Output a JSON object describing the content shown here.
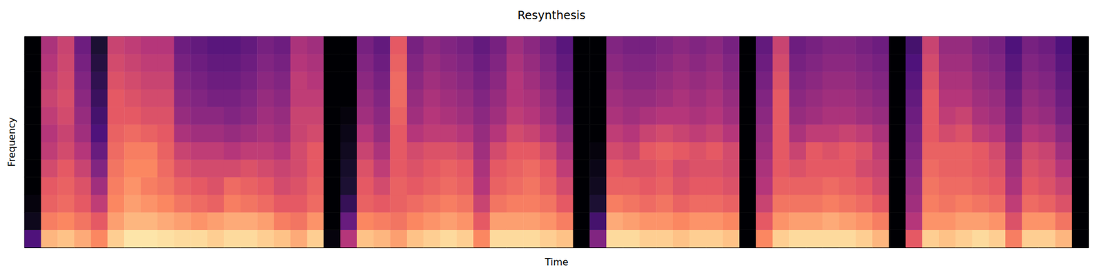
{
  "chart_data": {
    "type": "heatmap",
    "title": "Resynthesis",
    "x_label": "Time",
    "y_label": "Frequency",
    "tick_labels": false,
    "grid": false,
    "zlim": [
      -80,
      0
    ],
    "cells": [
      [
        -60,
        -75,
        -78,
        -80,
        -80,
        -80,
        -80,
        -80,
        -80,
        -80,
        -80,
        -80
      ],
      [
        -12,
        -22,
        -28,
        -30,
        -34,
        -38,
        -40,
        -38,
        -36,
        -38,
        -40,
        -42
      ],
      [
        -10,
        -20,
        -26,
        -28,
        -30,
        -34,
        -36,
        -34,
        -33,
        -34,
        -35,
        -36
      ],
      [
        -14,
        -24,
        -30,
        -32,
        -36,
        -40,
        -44,
        -46,
        -48,
        -50,
        -52,
        -54
      ],
      [
        -20,
        -30,
        -38,
        -44,
        -50,
        -55,
        -60,
        -62,
        -64,
        -66,
        -68,
        -70
      ],
      [
        -8,
        -16,
        -20,
        -22,
        -24,
        -26,
        -28,
        -30,
        -30,
        -32,
        -34,
        -36
      ],
      [
        -4,
        -12,
        -16,
        -18,
        -20,
        -22,
        -26,
        -30,
        -32,
        -34,
        -36,
        -38
      ],
      [
        -4,
        -12,
        -18,
        -22,
        -20,
        -22,
        -28,
        -32,
        -34,
        -36,
        -38,
        -40
      ],
      [
        -5,
        -14,
        -20,
        -24,
        -26,
        -28,
        -30,
        -32,
        -34,
        -36,
        -38,
        -40
      ],
      [
        -6,
        -16,
        -24,
        -28,
        -32,
        -36,
        -42,
        -46,
        -48,
        -50,
        -52,
        -54
      ],
      [
        -6,
        -18,
        -26,
        -30,
        -34,
        -38,
        -44,
        -48,
        -50,
        -52,
        -54,
        -56
      ],
      [
        -8,
        -16,
        -28,
        -32,
        -34,
        -38,
        -44,
        -48,
        -52,
        -54,
        -56,
        -58
      ],
      [
        -6,
        -14,
        -22,
        -26,
        -34,
        -40,
        -46,
        -50,
        -52,
        -54,
        -56,
        -58
      ],
      [
        -6,
        -14,
        -24,
        -28,
        -32,
        -38,
        -44,
        -48,
        -50,
        -52,
        -54,
        -56
      ],
      [
        -8,
        -16,
        -26,
        -30,
        -34,
        -38,
        -42,
        -44,
        -46,
        -48,
        -50,
        -52
      ],
      [
        -10,
        -22,
        -30,
        -34,
        -36,
        -40,
        -44,
        -46,
        -48,
        -50,
        -52,
        -54
      ],
      [
        -14,
        -24,
        -30,
        -32,
        -34,
        -34,
        -36,
        -36,
        -38,
        -38,
        -40,
        -42
      ],
      [
        -8,
        -18,
        -26,
        -28,
        -30,
        -30,
        -34,
        -36,
        -38,
        -40,
        -42,
        -44
      ],
      [
        -78,
        -80,
        -80,
        -80,
        -80,
        -80,
        -80,
        -80,
        -80,
        -80,
        -80,
        -80
      ],
      [
        -40,
        -55,
        -65,
        -70,
        -72,
        -74,
        -76,
        -78,
        -80,
        -80,
        -80,
        -80
      ],
      [
        -10,
        -20,
        -28,
        -30,
        -32,
        -36,
        -40,
        -44,
        -46,
        -48,
        -50,
        -52
      ],
      [
        -12,
        -22,
        -30,
        -34,
        -38,
        -42,
        -46,
        -48,
        -50,
        -52,
        -54,
        -56
      ],
      [
        -16,
        -24,
        -28,
        -28,
        -30,
        -30,
        -30,
        -28,
        -26,
        -26,
        -28,
        -30
      ],
      [
        -10,
        -20,
        -26,
        -30,
        -32,
        -34,
        -40,
        -44,
        -46,
        -48,
        -50,
        -52
      ],
      [
        -8,
        -18,
        -24,
        -28,
        -30,
        -32,
        -38,
        -40,
        -42,
        -44,
        -46,
        -48
      ],
      [
        -6,
        -16,
        -22,
        -26,
        -28,
        -32,
        -38,
        -42,
        -44,
        -46,
        -48,
        -50
      ],
      [
        -8,
        -18,
        -24,
        -28,
        -30,
        -34,
        -40,
        -44,
        -46,
        -48,
        -50,
        -52
      ],
      [
        -20,
        -30,
        -36,
        -40,
        -42,
        -44,
        -46,
        -48,
        -50,
        -52,
        -54,
        -56
      ],
      [
        -6,
        -16,
        -24,
        -28,
        -30,
        -34,
        -40,
        -44,
        -46,
        -48,
        -50,
        -52
      ],
      [
        -6,
        -16,
        -22,
        -26,
        -28,
        -30,
        -34,
        -38,
        -40,
        -40,
        -42,
        -44
      ],
      [
        -6,
        -16,
        -22,
        -24,
        -26,
        -30,
        -36,
        -40,
        -42,
        -44,
        -46,
        -48
      ],
      [
        -8,
        -18,
        -24,
        -28,
        -30,
        -34,
        -40,
        -44,
        -46,
        -48,
        -50,
        -52
      ],
      [
        -10,
        -22,
        -30,
        -34,
        -38,
        -42,
        -46,
        -50,
        -52,
        -54,
        -56,
        -58
      ],
      [
        -80,
        -80,
        -80,
        -80,
        -80,
        -80,
        -80,
        -80,
        -80,
        -80,
        -80,
        -80
      ],
      [
        -50,
        -62,
        -70,
        -74,
        -76,
        -78,
        -80,
        -80,
        -80,
        -80,
        -80,
        -80
      ],
      [
        -6,
        -14,
        -22,
        -28,
        -30,
        -34,
        -38,
        -42,
        -44,
        -46,
        -48,
        -50
      ],
      [
        -6,
        -16,
        -24,
        -28,
        -32,
        -36,
        -40,
        -44,
        -46,
        -48,
        -50,
        -52
      ],
      [
        -8,
        -18,
        -26,
        -30,
        -32,
        -30,
        -36,
        -42,
        -46,
        -48,
        -50,
        -52
      ],
      [
        -8,
        -18,
        -24,
        -28,
        -30,
        -28,
        -34,
        -40,
        -44,
        -46,
        -48,
        -50
      ],
      [
        -10,
        -20,
        -28,
        -32,
        -34,
        -30,
        -36,
        -40,
        -42,
        -44,
        -46,
        -48
      ],
      [
        -8,
        -18,
        -26,
        -30,
        -32,
        -32,
        -38,
        -42,
        -44,
        -46,
        -48,
        -50
      ],
      [
        -8,
        -18,
        -26,
        -30,
        -32,
        -30,
        -36,
        -40,
        -42,
        -44,
        -46,
        -48
      ],
      [
        -10,
        -20,
        -28,
        -32,
        -34,
        -34,
        -40,
        -44,
        -46,
        -48,
        -50,
        -52
      ],
      [
        -80,
        -80,
        -80,
        -80,
        -80,
        -80,
        -80,
        -80,
        -80,
        -80,
        -80,
        -80
      ],
      [
        -20,
        -30,
        -36,
        -40,
        -42,
        -44,
        -46,
        -48,
        -50,
        -52,
        -54,
        -56
      ],
      [
        -8,
        -18,
        -24,
        -28,
        -30,
        -30,
        -30,
        -30,
        -30,
        -32,
        -34,
        -36
      ],
      [
        -6,
        -16,
        -24,
        -28,
        -32,
        -36,
        -42,
        -46,
        -48,
        -50,
        -52,
        -54
      ],
      [
        -6,
        -16,
        -24,
        -28,
        -30,
        -30,
        -38,
        -44,
        -46,
        -48,
        -50,
        -52
      ],
      [
        -6,
        -14,
        -22,
        -26,
        -30,
        -32,
        -38,
        -42,
        -44,
        -46,
        -48,
        -50
      ],
      [
        -6,
        -16,
        -24,
        -28,
        -30,
        -30,
        -36,
        -42,
        -44,
        -46,
        -48,
        -50
      ],
      [
        -8,
        -18,
        -26,
        -30,
        -34,
        -32,
        -38,
        -44,
        -46,
        -48,
        -50,
        -52
      ],
      [
        -12,
        -22,
        -30,
        -34,
        -36,
        -38,
        -42,
        -46,
        -48,
        -50,
        -52,
        -54
      ],
      [
        -80,
        -80,
        -80,
        -80,
        -80,
        -80,
        -80,
        -80,
        -80,
        -80,
        -80,
        -80
      ],
      [
        -30,
        -40,
        -44,
        -46,
        -48,
        -50,
        -52,
        -54,
        -56,
        -58,
        -60,
        -62
      ],
      [
        -8,
        -18,
        -22,
        -24,
        -26,
        -28,
        -30,
        -30,
        -30,
        -32,
        -34,
        -36
      ],
      [
        -10,
        -18,
        -24,
        -26,
        -28,
        -28,
        -34,
        -38,
        -40,
        -42,
        -44,
        -46
      ],
      [
        -8,
        -16,
        -22,
        -26,
        -28,
        -28,
        -32,
        -36,
        -40,
        -42,
        -44,
        -46
      ],
      [
        -6,
        -16,
        -24,
        -28,
        -30,
        -30,
        -38,
        -42,
        -44,
        -46,
        -48,
        -50
      ],
      [
        -8,
        -18,
        -26,
        -30,
        -32,
        -34,
        -40,
        -44,
        -46,
        -48,
        -50,
        -52
      ],
      [
        -22,
        -32,
        -38,
        -42,
        -44,
        -46,
        -50,
        -52,
        -54,
        -56,
        -58,
        -60
      ],
      [
        -8,
        -18,
        -26,
        -30,
        -32,
        -34,
        -40,
        -44,
        -46,
        -48,
        -50,
        -52
      ],
      [
        -8,
        -18,
        -28,
        -32,
        -34,
        -36,
        -42,
        -46,
        -48,
        -50,
        -52,
        -54
      ],
      [
        -12,
        -24,
        -32,
        -36,
        -40,
        -44,
        -48,
        -52,
        -54,
        -56,
        -58,
        -60
      ],
      [
        -80,
        -80,
        -80,
        -80,
        -80,
        -80,
        -80,
        -80,
        -80,
        -80,
        -80,
        -80
      ]
    ]
  }
}
